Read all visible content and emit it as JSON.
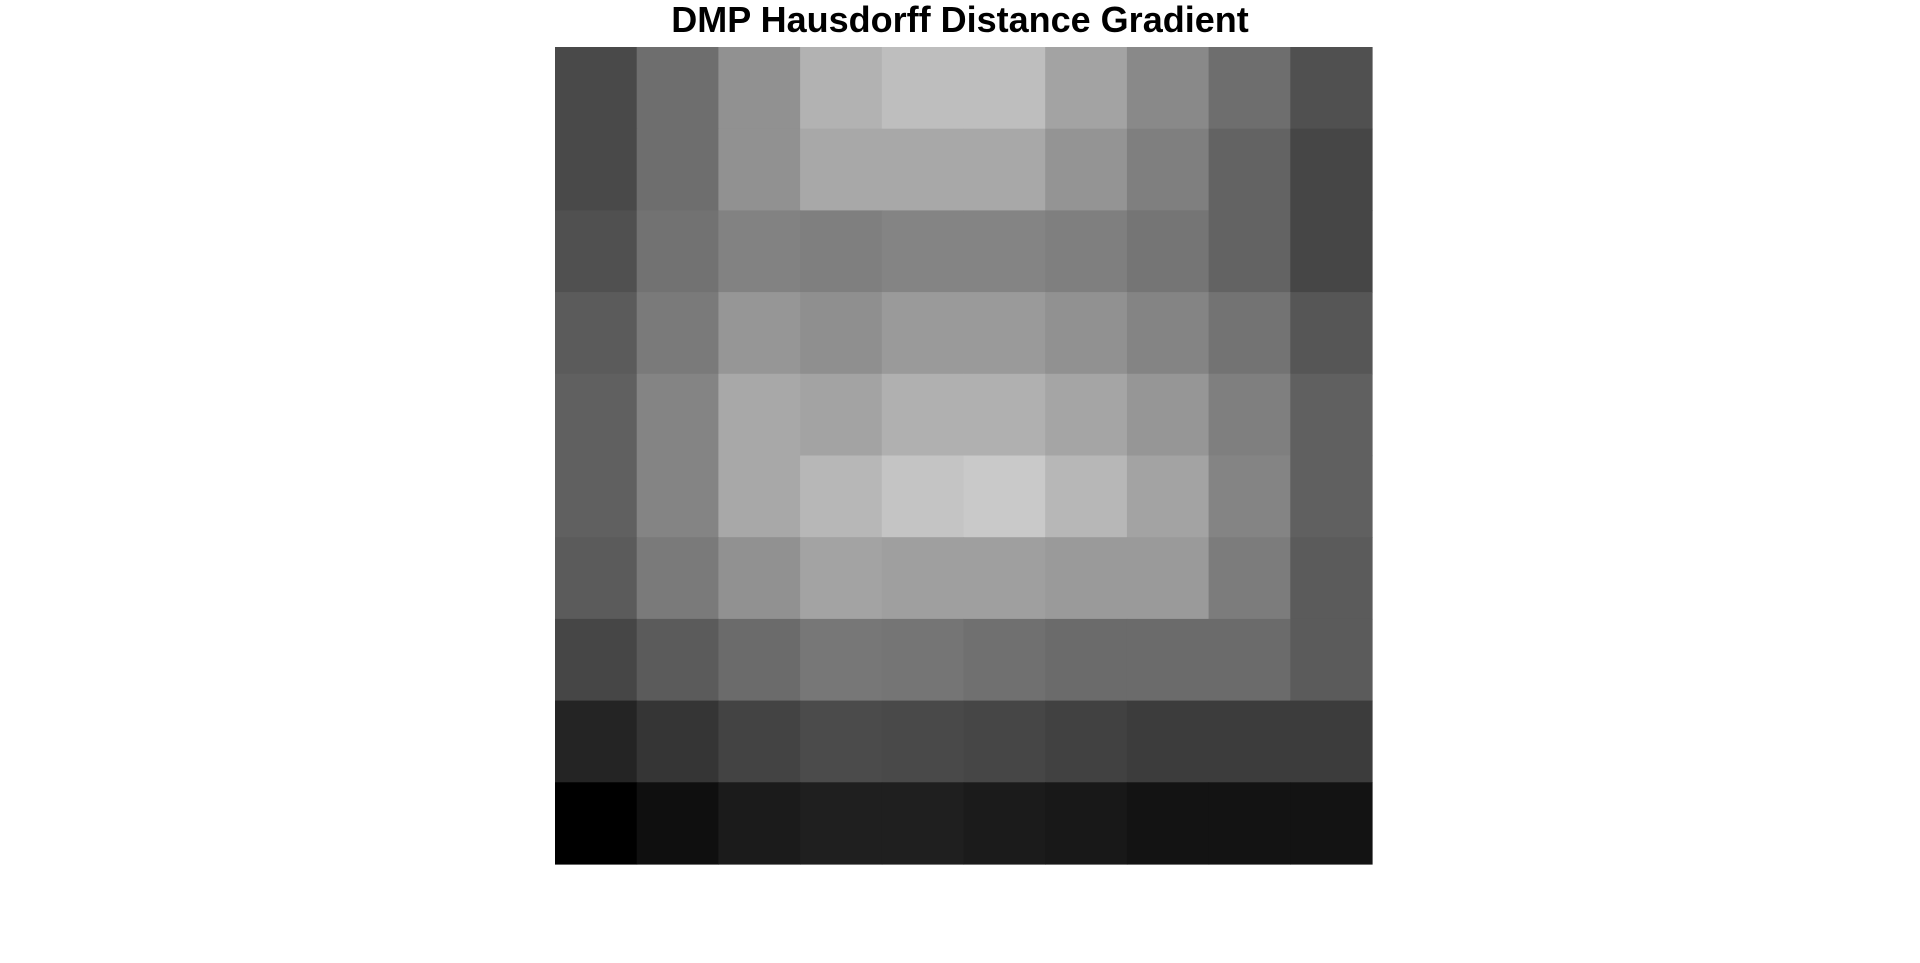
{
  "chart_data": {
    "type": "heatmap",
    "title": "DMP Hausdorff Distance Gradient",
    "xlabel": "",
    "ylabel": "",
    "colormap": "gray",
    "grid": false,
    "legend": "none",
    "rows": 10,
    "cols": 10,
    "value_range": [
      0,
      255
    ],
    "values": [
      [
        73,
        110,
        145,
        178,
        190,
        190,
        163,
        137,
        110,
        80
      ],
      [
        73,
        110,
        145,
        168,
        168,
        168,
        148,
        127,
        99,
        70
      ],
      [
        80,
        114,
        130,
        127,
        132,
        132,
        127,
        117,
        99,
        70
      ],
      [
        91,
        122,
        150,
        143,
        154,
        154,
        145,
        132,
        115,
        86
      ],
      [
        96,
        132,
        168,
        163,
        176,
        176,
        165,
        150,
        127,
        96
      ],
      [
        96,
        132,
        168,
        183,
        196,
        201,
        183,
        163,
        132,
        96
      ],
      [
        91,
        122,
        145,
        163,
        159,
        159,
        154,
        154,
        124,
        91
      ],
      [
        70,
        91,
        107,
        119,
        117,
        112,
        107,
        107,
        107,
        91
      ],
      [
        36,
        53,
        67,
        75,
        73,
        70,
        65,
        60,
        60,
        60
      ],
      [
        0,
        15,
        27,
        31,
        31,
        27,
        24,
        19,
        19,
        19
      ]
    ]
  }
}
